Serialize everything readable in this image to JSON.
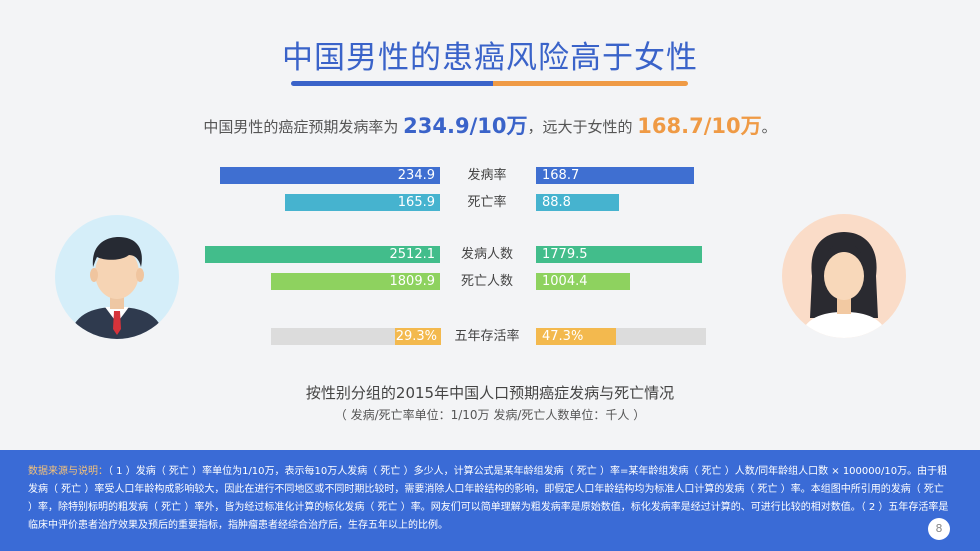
{
  "title": "中国男性的患癌风险高于女性",
  "subtitle": {
    "prefix": "中国男性的癌症预期发病率为 ",
    "male_value": "234.9/10万",
    "middle": "，远大于女性的 ",
    "female_value": "168.7/10万",
    "suffix": "。"
  },
  "colors": {
    "male_accent": "#3a63c9",
    "female_accent": "#ef9a45",
    "incidence_rate": "#3f6fd1",
    "mortality_rate": "#46b3cf",
    "incidence_count": "#42bd8b",
    "death_count": "#8ed25f",
    "survival": "#f3b94e",
    "survival_track": "#dcdcdc",
    "footer_bg": "#3a6bd6"
  },
  "chart_data": {
    "type": "bar",
    "title": "按性别分组的2015年中国人口预期癌症发病与死亡情况",
    "note": "（ 发病/死亡率单位：1/10万  发病/死亡人数单位：千人 ）",
    "series_sides": [
      "男性",
      "女性"
    ],
    "rows": [
      {
        "label": "发病率",
        "male": 234.9,
        "female": 168.7,
        "male_text": "234.9",
        "female_text": "168.7",
        "group": "rate"
      },
      {
        "label": "死亡率",
        "male": 165.9,
        "female": 88.8,
        "male_text": "165.9",
        "female_text": "88.8",
        "group": "rate"
      },
      {
        "label": "发病人数",
        "male": 2512.1,
        "female": 1779.5,
        "male_text": "2512.1",
        "female_text": "1779.5",
        "group": "count"
      },
      {
        "label": "死亡人数",
        "male": 1809.9,
        "female": 1004.4,
        "male_text": "1809.9",
        "female_text": "1004.4",
        "group": "count"
      },
      {
        "label": "五年存活率",
        "male": 29.3,
        "female": 47.3,
        "male_text": "29.3%",
        "female_text": "47.3%",
        "group": "percent"
      }
    ]
  },
  "footer": {
    "source_label": "数据来源与说明：",
    "text": "（ 1 ）发病（ 死亡 ）率单位为1/10万，表示每10万人发病（ 死亡 ）多少人，计算公式是某年龄组发病（ 死亡 ）率=某年龄组发病（ 死亡 ）人数/同年龄组人口数 × 100000/10万。由于粗发病（ 死亡 ）率受人口年龄构成影响较大，因此在进行不同地区或不同时期比较时，需要消除人口年龄结构的影响，即假定人口年龄结构均为标准人口计算的发病（ 死亡 ）率。本组图中所引用的发病（ 死亡 ）率，除特别标明的粗发病（ 死亡 ）率外，皆为经过标准化计算的标化发病（ 死亡 ）率。网友们可以简单理解为粗发病率是原始数值，标化发病率是经过计算的、可进行比较的相对数值。（ 2 ）五年存活率是临床中评价患者治疗效果及预后的重要指标，指肿瘤患者经综合治疗后，生存五年以上的比例。"
  },
  "page_number": "8"
}
